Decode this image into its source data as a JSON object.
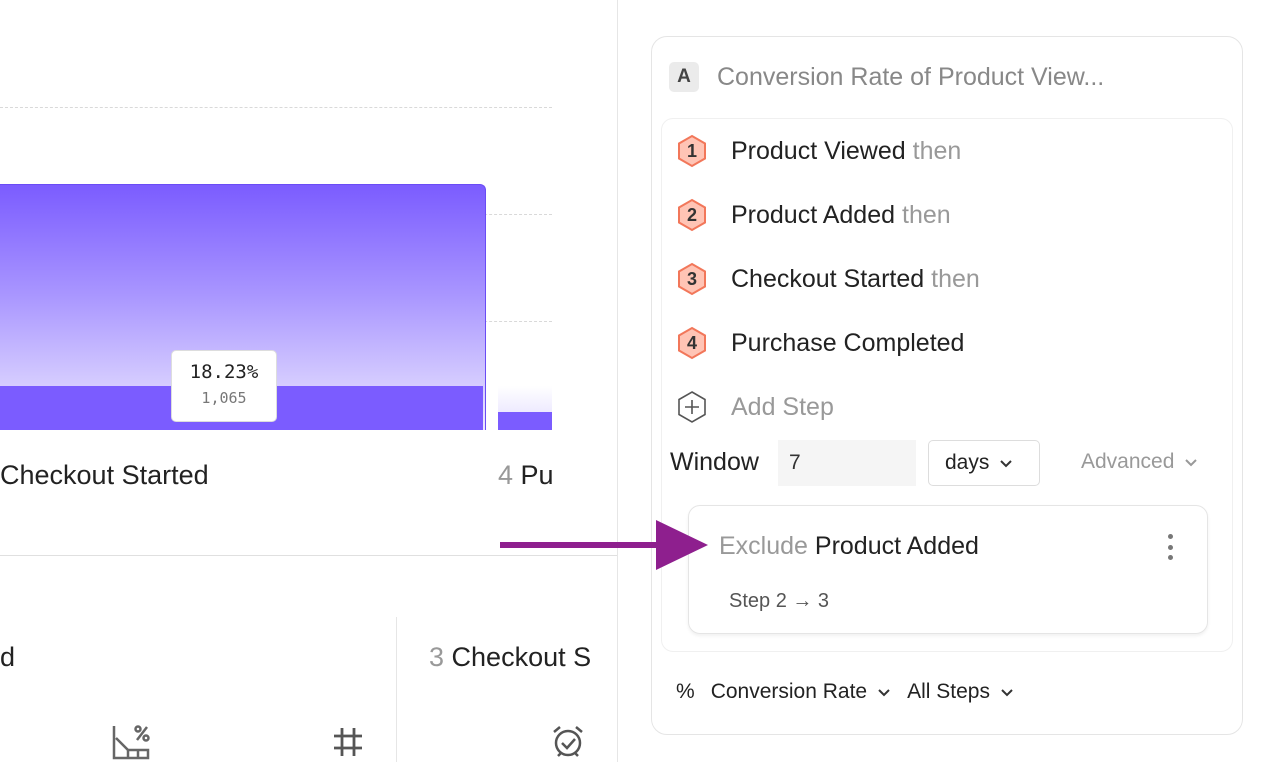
{
  "chart": {
    "tooltip": {
      "percent": "18.23%",
      "count": "1,065"
    },
    "bar_labels": [
      {
        "number": "",
        "name": "Checkout Started"
      },
      {
        "number": "4",
        "name": "Pu"
      }
    ]
  },
  "summary": {
    "columns": [
      {
        "number": "",
        "name": "d"
      },
      {
        "number": "3",
        "name": "Checkout S"
      }
    ],
    "icons": [
      "chart-percent-icon",
      "hash-icon",
      "alarm-check-icon"
    ]
  },
  "panel": {
    "badge": "A",
    "title": "Conversion Rate of Product View...",
    "steps": [
      {
        "number": "1",
        "name": "Product Viewed",
        "suffix": "then"
      },
      {
        "number": "2",
        "name": "Product Added",
        "suffix": "then"
      },
      {
        "number": "3",
        "name": "Checkout Started",
        "suffix": "then"
      },
      {
        "number": "4",
        "name": "Purchase Completed",
        "suffix": ""
      }
    ],
    "add_step": "Add Step",
    "window_label": "Window",
    "window_value": "7",
    "window_unit": "days",
    "advanced": "Advanced",
    "exclusion": {
      "prefix": "Exclude",
      "event": "Product Added",
      "range": "Step 2 → 3"
    },
    "metric_symbol": "%",
    "metric": "Conversion Rate",
    "steps_scope": "All Steps"
  },
  "colors": {
    "accent": "#7b5cff",
    "step_badge": "#ffc4b5",
    "step_badge_border": "#f2775a",
    "arrow": "#8e1f8e"
  }
}
